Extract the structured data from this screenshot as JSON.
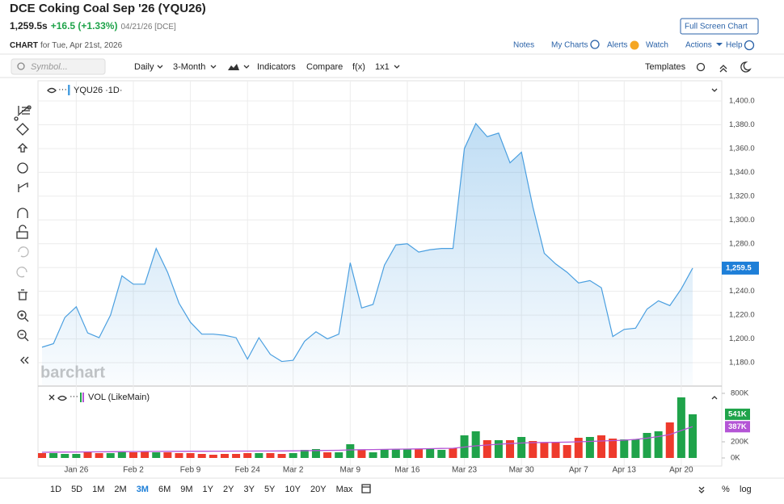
{
  "header": {
    "title": "DCE Coking Coal Sep '26 (YQU26)",
    "last": "1,259.5s",
    "change": "+16.5 (+1.33%)",
    "date": "04/21/26 [DCE]",
    "fullscreen": "Full Screen Chart",
    "chart_label": "CHART",
    "chart_date": "for Tue, Apr 21st, 2026"
  },
  "links": [
    "Notes",
    "My Charts",
    "Alerts",
    "Watch",
    "Actions",
    "Help"
  ],
  "toolbar": {
    "symbol_placeholder": "Symbol...",
    "items": [
      "Daily",
      "3-Month",
      "Indicators",
      "Compare",
      "f(x)",
      "1x1"
    ],
    "templates": "Templates"
  },
  "periods": [
    "1D",
    "5D",
    "1M",
    "2M",
    "3M",
    "6M",
    "9M",
    "1Y",
    "2Y",
    "3Y",
    "5Y",
    "10Y",
    "20Y",
    "Max"
  ],
  "active_period": 4,
  "scale_options": [
    "%",
    "log"
  ],
  "chart_data": [
    {
      "type": "area",
      "legend": "YQU26 ·1D·",
      "watermark": "barchart",
      "color": "#4a9fe0",
      "values": [
        1193,
        1196,
        1218,
        1227,
        1205,
        1201,
        1220,
        1253,
        1246,
        1246,
        1276,
        1256,
        1230,
        1214,
        1204,
        1204,
        1203,
        1201,
        1183,
        1201,
        1187,
        1181,
        1182,
        1198,
        1206,
        1200,
        1204,
        1264,
        1226,
        1229,
        1262,
        1279,
        1280,
        1273,
        1275,
        1276,
        1276,
        1360,
        1381,
        1370,
        1373,
        1348,
        1357,
        1311,
        1272,
        1263,
        1256,
        1247,
        1249,
        1243,
        1202,
        1208,
        1209,
        1225,
        1232,
        1228,
        1242,
        1259.5
      ],
      "value_labels": [
        null,
        null,
        null,
        null,
        null,
        null,
        null,
        null,
        null,
        null,
        null,
        null,
        null,
        null,
        null,
        null,
        null,
        null,
        null,
        null,
        null,
        null,
        null,
        null,
        null,
        null,
        null,
        null,
        null,
        null,
        null,
        null,
        null,
        null,
        null,
        null,
        null,
        null,
        null,
        null,
        null,
        null,
        null,
        null,
        null,
        null,
        null,
        null,
        null,
        null,
        null,
        null,
        null,
        null,
        null,
        null,
        null,
        "1,259.5"
      ],
      "ylim": [
        1161,
        1417
      ],
      "yticks": [
        {
          "value": 1180,
          "label": "1,180.0"
        },
        {
          "value": 1200,
          "label": "1,200.0"
        },
        {
          "value": 1220,
          "label": "1,220.0"
        },
        {
          "value": 1240,
          "label": "1,240.0"
        },
        {
          "value": 1260,
          "label": "1,260.0"
        },
        {
          "value": 1280,
          "label": "1,280.0"
        },
        {
          "value": 1300,
          "label": "1,300.0"
        },
        {
          "value": 1320,
          "label": "1,320.0"
        },
        {
          "value": 1340,
          "label": "1,340.0"
        },
        {
          "value": 1360,
          "label": "1,360.0"
        },
        {
          "value": 1380,
          "label": "1,380.0"
        },
        {
          "value": 1400,
          "label": "1,400.0"
        }
      ],
      "grid": true
    },
    {
      "type": "bar",
      "up_color": "#1fa34a",
      "down_color": "#ee3a2c",
      "categories": [
        null,
        null,
        null,
        "Jan 26",
        null,
        null,
        null,
        null,
        "Feb 2",
        null,
        null,
        null,
        null,
        "Feb 9",
        null,
        null,
        null,
        null,
        "Feb 24",
        null,
        null,
        null,
        "Mar 2",
        null,
        null,
        null,
        null,
        "Mar 9",
        null,
        null,
        null,
        null,
        "Mar 16",
        null,
        null,
        null,
        null,
        "Mar 23",
        null,
        null,
        null,
        null,
        "Mar 30",
        null,
        null,
        null,
        null,
        "Apr 7",
        null,
        null,
        null,
        "Apr 13",
        null,
        null,
        null,
        null,
        "Apr 20",
        null
      ],
      "series": [
        {
          "name": "VOL (LikeMain)",
          "values": [
            60000,
            60000,
            50000,
            50000,
            70000,
            60000,
            60000,
            80000,
            70000,
            80000,
            70000,
            70000,
            60000,
            60000,
            50000,
            40000,
            50000,
            50000,
            60000,
            60000,
            60000,
            50000,
            60000,
            100000,
            110000,
            70000,
            70000,
            170000,
            100000,
            70000,
            110000,
            110000,
            110000,
            110000,
            120000,
            100000,
            120000,
            280000,
            330000,
            220000,
            220000,
            220000,
            260000,
            210000,
            190000,
            190000,
            160000,
            250000,
            260000,
            280000,
            240000,
            230000,
            230000,
            310000,
            330000,
            440000,
            750000,
            541000
          ],
          "value_labels": [
            null,
            null,
            null,
            null,
            null,
            null,
            null,
            null,
            null,
            null,
            null,
            null,
            null,
            null,
            null,
            null,
            null,
            null,
            null,
            null,
            null,
            null,
            null,
            null,
            null,
            null,
            null,
            null,
            null,
            null,
            null,
            null,
            null,
            null,
            null,
            null,
            null,
            null,
            null,
            null,
            null,
            null,
            null,
            null,
            null,
            null,
            null,
            null,
            null,
            null,
            null,
            null,
            null,
            null,
            null,
            null,
            null,
            "541K"
          ]
        },
        {
          "color": "#b455d6",
          "values": [
            70000,
            72000,
            73000,
            74000,
            75000,
            76000,
            77000,
            78000,
            79000,
            80000,
            81000,
            82000,
            82000,
            83000,
            83000,
            84000,
            84000,
            85000,
            85000,
            86000,
            86000,
            87000,
            88000,
            90000,
            92000,
            93000,
            95000,
            100000,
            102000,
            104000,
            106000,
            108000,
            110000,
            112000,
            115000,
            118000,
            120000,
            135000,
            150000,
            160000,
            170000,
            178000,
            185000,
            190000,
            192000,
            194000,
            196000,
            200000,
            205000,
            210000,
            215000,
            220000,
            230000,
            245000,
            265000,
            290000,
            340000,
            387000
          ],
          "value_labels": [
            null,
            null,
            null,
            null,
            null,
            null,
            null,
            null,
            null,
            null,
            null,
            null,
            null,
            null,
            null,
            null,
            null,
            null,
            null,
            null,
            null,
            null,
            null,
            null,
            null,
            null,
            null,
            null,
            null,
            null,
            null,
            null,
            null,
            null,
            null,
            null,
            null,
            null,
            null,
            null,
            null,
            null,
            null,
            null,
            null,
            null,
            null,
            null,
            null,
            null,
            null,
            null,
            null,
            null,
            null,
            null,
            null,
            "387K"
          ]
        }
      ],
      "ylim": [
        -100000,
        870000
      ],
      "yticks": [
        {
          "value": 800000,
          "label": "800K"
        },
        {
          "value": 200000,
          "label": "200K"
        },
        {
          "value": 0,
          "label": "0K"
        }
      ]
    }
  ]
}
